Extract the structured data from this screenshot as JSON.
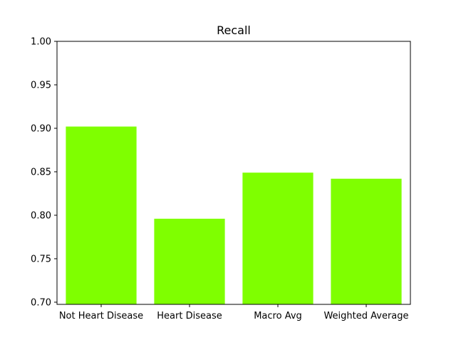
{
  "chart_data": {
    "type": "bar",
    "title": "Recall",
    "xlabel": "",
    "ylabel": "",
    "categories": [
      "Not Heart Disease",
      "Heart Disease",
      "Macro Avg",
      "Weighted Average"
    ],
    "values": [
      0.902,
      0.796,
      0.849,
      0.842
    ],
    "ylim": [
      0.6975,
      1.0
    ],
    "yticks": [
      0.7,
      0.75,
      0.8,
      0.85,
      0.9,
      0.95,
      1.0
    ],
    "ytick_labels": [
      "0.70",
      "0.75",
      "0.80",
      "0.85",
      "0.90",
      "0.95",
      "1.00"
    ],
    "bar_color": "#7fff00",
    "grid": false,
    "legend": "none"
  }
}
